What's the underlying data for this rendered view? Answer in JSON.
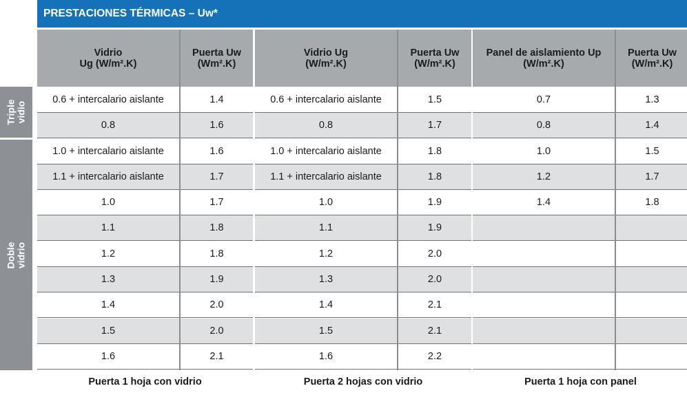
{
  "title": "PRESTACIONES TÉRMICAS – Uw*",
  "side_labels": {
    "triple": "Triple\nvidio",
    "doble": "Doble\nvidrio"
  },
  "tables": [
    {
      "headers": [
        "Vidrio\nUg (W/m².K)",
        "Puerta Uw\n(Wm².K)"
      ],
      "rows": [
        [
          "0.6 + intercalario aislante",
          "1.4"
        ],
        [
          "0.8",
          "1.6"
        ],
        [
          "1.0 + intercalario aislante",
          "1.6"
        ],
        [
          "1.1 + intercalario aislante",
          "1.7"
        ],
        [
          "1.0",
          "1.7"
        ],
        [
          "1.1",
          "1.8"
        ],
        [
          "1.2",
          "1.8"
        ],
        [
          "1.3",
          "1.9"
        ],
        [
          "1.4",
          "2.0"
        ],
        [
          "1.5",
          "2.0"
        ],
        [
          "1.6",
          "2.1"
        ]
      ],
      "footer": "Puerta 1 hoja con vidrio"
    },
    {
      "headers": [
        "Vidrio Ug\n(W/m².K)",
        "Puerta Uw\n(W/m².K)"
      ],
      "rows": [
        [
          "0.6 + intercalario aislante",
          "1.5"
        ],
        [
          "0.8",
          "1.7"
        ],
        [
          "1.0 + intercalario aislante",
          "1.8"
        ],
        [
          "1.1 + intercalario aislante",
          "1.8"
        ],
        [
          "1.0",
          "1.9"
        ],
        [
          "1.1",
          "1.9"
        ],
        [
          "1.2",
          "2.0"
        ],
        [
          "1.3",
          "2.0"
        ],
        [
          "1.4",
          "2.1"
        ],
        [
          "1.5",
          "2.1"
        ],
        [
          "1.6",
          "2.2"
        ]
      ],
      "footer": "Puerta 2 hojas con vidrio"
    },
    {
      "headers": [
        "Panel de aislamiento Up\n(W/m².K)",
        "Puerta Uw\n(W/m².K)"
      ],
      "rows": [
        [
          "0.7",
          "1.3"
        ],
        [
          "0.8",
          "1.4"
        ],
        [
          "1.0",
          "1.5"
        ],
        [
          "1.2",
          "1.7"
        ],
        [
          "1.4",
          "1.8"
        ],
        [
          "",
          ""
        ],
        [
          "",
          ""
        ],
        [
          "",
          ""
        ],
        [
          "",
          ""
        ],
        [
          "",
          ""
        ],
        [
          "",
          ""
        ]
      ],
      "footer": "Puerta 1 hoja con panel"
    }
  ]
}
